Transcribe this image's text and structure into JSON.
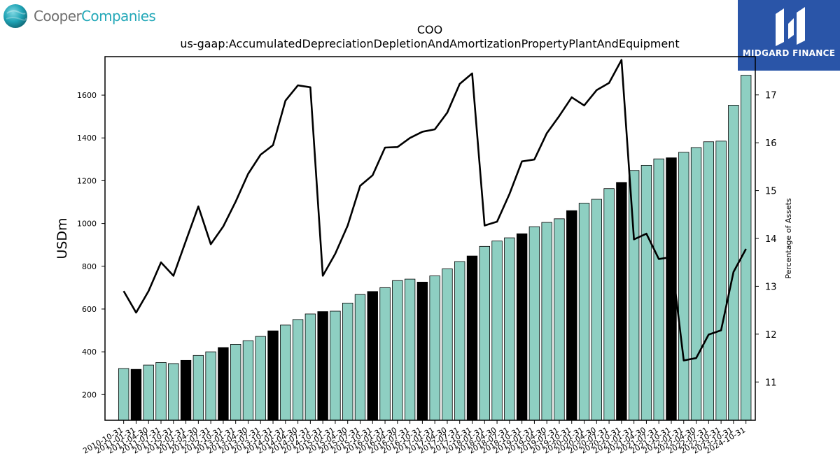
{
  "branding": {
    "left_logo": {
      "text_a": "Cooper",
      "text_b": "Companies",
      "icon": "globe-icon"
    },
    "right_logo": {
      "text": "MIDGARD FINANCE",
      "icon": "midgard-m-icon"
    }
  },
  "chart_data": {
    "type": "bar",
    "title": "COO",
    "subtitle": "us-gaap:AccumulatedDepreciationDepletionAndAmortizationPropertyPlantAndEquipment",
    "ylabel": "USDm",
    "y2label": "Percentage of Assets",
    "ylim": [
      80,
      1780
    ],
    "y2lim": [
      10.2,
      17.8
    ],
    "yticks": [
      200,
      400,
      600,
      800,
      1000,
      1200,
      1400,
      1600
    ],
    "y2ticks": [
      11,
      12,
      13,
      14,
      15,
      16,
      17
    ],
    "grid": false,
    "colors": {
      "bar": "#8ecfc2",
      "bar_highlight": "#000000",
      "line": "#000000",
      "axes": "#000000"
    },
    "categories": [
      "2010-10-31",
      "2011-01-31",
      "2011-04-30",
      "2011-07-31",
      "2011-10-31",
      "2012-01-31",
      "2012-04-30",
      "2012-07-31",
      "2012-10-31",
      "2013-01-31",
      "2013-04-30",
      "2013-07-31",
      "2013-10-31",
      "2014-01-31",
      "2014-04-30",
      "2014-07-31",
      "2014-10-31",
      "2015-01-31",
      "2015-04-30",
      "2015-07-31",
      "2015-10-31",
      "2016-01-31",
      "2016-04-30",
      "2016-07-31",
      "2016-10-31",
      "2017-01-31",
      "2017-04-30",
      "2017-07-31",
      "2017-10-31",
      "2018-01-31",
      "2018-04-30",
      "2018-07-31",
      "2018-10-31",
      "2019-01-31",
      "2019-04-30",
      "2019-07-31",
      "2019-10-31",
      "2020-01-31",
      "2020-04-30",
      "2020-07-31",
      "2020-10-31",
      "2021-01-31",
      "2021-04-30",
      "2021-07-31",
      "2021-10-31",
      "2022-01-31",
      "2022-04-30",
      "2022-07-31",
      "2022-10-31",
      "2023-10-31",
      "2024-10-31"
    ],
    "series": [
      {
        "kind": "bar",
        "values": [
          322,
          318,
          338,
          350,
          345,
          360,
          383,
          400,
          420,
          435,
          452,
          472,
          498,
          525,
          551,
          577,
          588,
          590,
          628,
          668,
          682,
          700,
          733,
          740,
          726,
          755,
          788,
          822,
          848,
          893,
          918,
          933,
          952,
          985,
          1005,
          1022,
          1060,
          1095,
          1113,
          1163,
          1192,
          1248,
          1272,
          1302,
          1307,
          1333,
          1355,
          1382,
          1385,
          1553,
          1693
        ],
        "highlight": [
          false,
          true,
          false,
          false,
          false,
          true,
          false,
          false,
          true,
          false,
          false,
          false,
          true,
          false,
          false,
          false,
          true,
          false,
          false,
          false,
          true,
          false,
          false,
          false,
          true,
          false,
          false,
          false,
          true,
          false,
          false,
          false,
          true,
          false,
          false,
          false,
          true,
          false,
          false,
          false,
          true,
          false,
          false,
          false,
          true,
          false,
          false,
          false,
          false,
          false,
          false
        ]
      },
      {
        "kind": "line",
        "axis": "right",
        "values": [
          12.9,
          12.45,
          12.9,
          13.5,
          13.22,
          13.95,
          14.67,
          13.88,
          14.25,
          14.77,
          15.35,
          15.75,
          15.95,
          16.88,
          17.2,
          17.16,
          13.22,
          13.68,
          14.27,
          15.1,
          15.32,
          15.9,
          15.91,
          16.1,
          16.23,
          16.28,
          16.63,
          17.23,
          17.45,
          14.27,
          14.35,
          14.93,
          15.61,
          15.65,
          16.2,
          16.56,
          16.95,
          16.78,
          17.1,
          17.25,
          17.73,
          13.98,
          14.1,
          13.57,
          13.61,
          11.45,
          11.5,
          11.99,
          12.08,
          13.3,
          13.78
        ]
      }
    ]
  }
}
